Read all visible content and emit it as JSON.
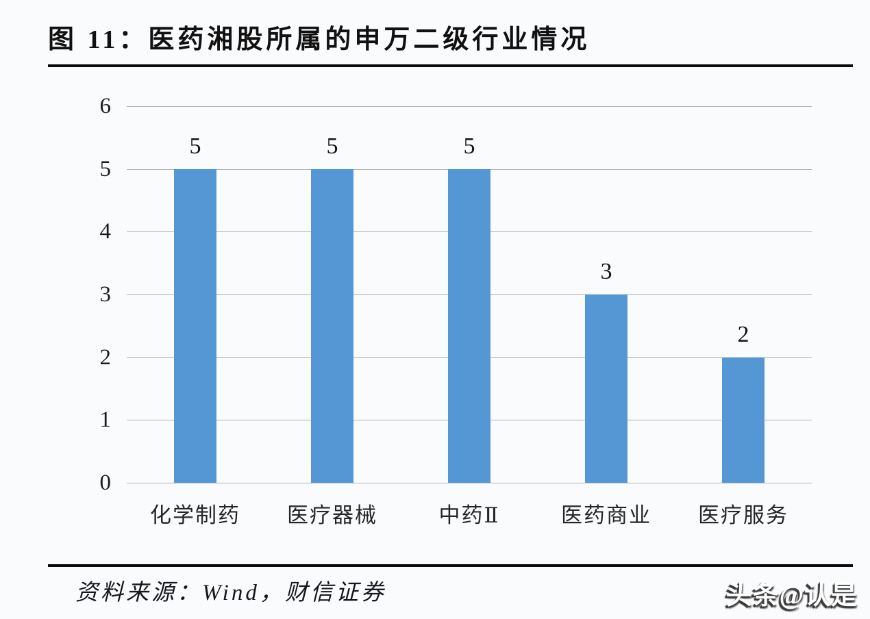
{
  "figure": {
    "title": "图 11：医药湘股所属的申万二级行业情况",
    "source": "资料来源：Wind，财信证券",
    "watermark": "头条@认是"
  },
  "chart_data": {
    "type": "bar",
    "title": "医药湘股所属的申万二级行业情况",
    "categories": [
      "化学制药",
      "医疗器械",
      "中药Ⅱ",
      "医药商业",
      "医疗服务"
    ],
    "values": [
      5,
      5,
      5,
      3,
      2
    ],
    "data_labels": [
      "5",
      "5",
      "5",
      "3",
      "2"
    ],
    "xlabel": "",
    "ylabel": "",
    "ylim": [
      0,
      6
    ],
    "yticks": [
      0,
      1,
      2,
      3,
      4,
      5,
      6
    ],
    "grid": true,
    "legend": "none",
    "bar_color": "#5596d4",
    "gridline_color": "#a5a5a5",
    "label_color": "#141414"
  }
}
